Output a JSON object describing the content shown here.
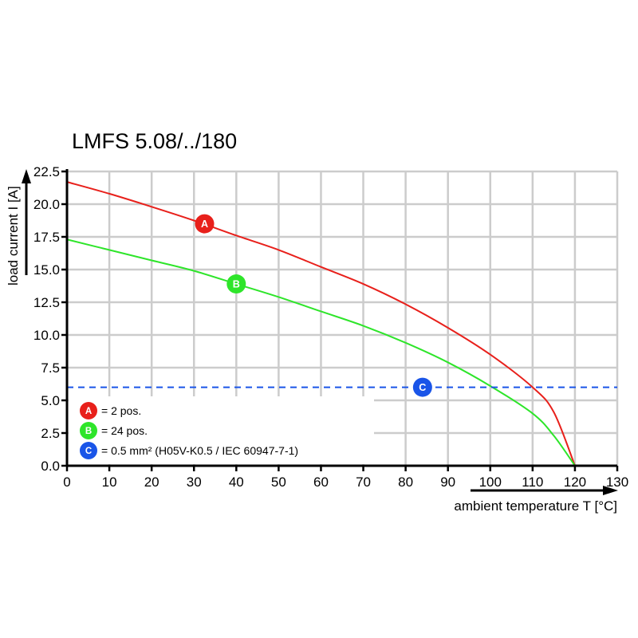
{
  "chart_data": {
    "type": "line",
    "title": "LMFS 5.08/../180",
    "xlabel": "ambient temperature T [°C]",
    "ylabel": "load current I [A]",
    "xlim": [
      0,
      130
    ],
    "ylim": [
      0,
      22.5
    ],
    "xticks": [
      "0",
      "10",
      "20",
      "30",
      "40",
      "50",
      "60",
      "70",
      "80",
      "90",
      "100",
      "110",
      "120",
      "130"
    ],
    "yticks": [
      "0.0",
      "2.5",
      "5.0",
      "7.5",
      "10.0",
      "12.5",
      "15.0",
      "17.5",
      "20.0",
      "22.5"
    ],
    "grid": true,
    "series": [
      {
        "marker": "A",
        "color": "#e8201b",
        "x": [
          0,
          10,
          20,
          30,
          40,
          50,
          60,
          70,
          80,
          90,
          100,
          110,
          115,
          120
        ],
        "y": [
          21.7,
          20.8,
          19.8,
          18.75,
          17.6,
          16.5,
          15.2,
          13.9,
          12.35,
          10.55,
          8.5,
          6.0,
          4.1,
          0
        ],
        "marker_at": [
          32.5,
          18.5
        ]
      },
      {
        "marker": "B",
        "color": "#2ee52a",
        "x": [
          0,
          10,
          20,
          30,
          40,
          50,
          60,
          70,
          80,
          90,
          100,
          110,
          115,
          120
        ],
        "y": [
          17.3,
          16.5,
          15.7,
          14.9,
          13.9,
          12.9,
          11.8,
          10.7,
          9.4,
          7.9,
          6.1,
          4.0,
          2.3,
          0
        ],
        "marker_at": [
          40,
          13.9
        ]
      },
      {
        "marker": "C",
        "color": "#1a55e8",
        "style": "dashed",
        "x": [
          0,
          130
        ],
        "y": [
          6,
          6
        ],
        "marker_at": [
          84,
          6
        ]
      }
    ],
    "legend": {
      "placement": "bottom-left",
      "entries": [
        {
          "marker": "A",
          "label": "= 2 pos."
        },
        {
          "marker": "B",
          "label": "= 24 pos."
        },
        {
          "marker": "C",
          "label": "= 0.5 mm² (H05V-K0.5 / IEC 60947-7-1)"
        }
      ]
    }
  }
}
